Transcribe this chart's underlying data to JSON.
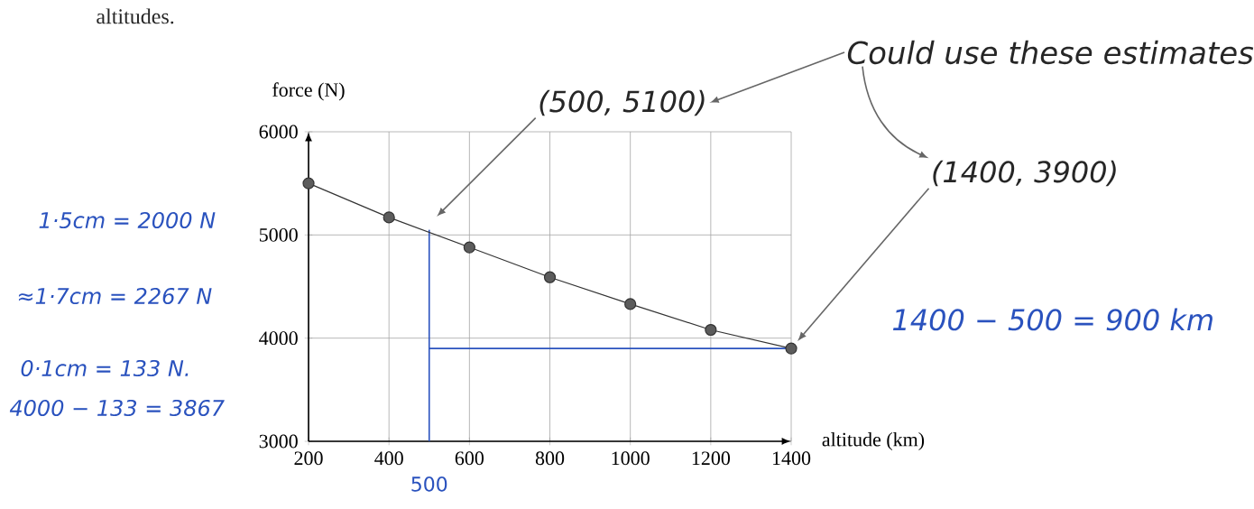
{
  "chart_data": {
    "type": "line",
    "xlabel": "altitude (km)",
    "ylabel": "force (N)",
    "x": [
      200,
      400,
      600,
      800,
      1000,
      1200,
      1400
    ],
    "values": [
      5500,
      5170,
      4880,
      4590,
      4330,
      4080,
      3900
    ],
    "color": "#333333",
    "marker": "circle",
    "grid": true,
    "xlim": [
      200,
      1400
    ],
    "xticks": [
      200,
      400,
      600,
      800,
      1000,
      1200,
      1400
    ],
    "ylim": [
      3000,
      6000
    ],
    "yticks": [
      3000,
      4000,
      5000,
      6000
    ],
    "ref_lines": [
      {
        "axis": "x",
        "value": 500,
        "label": "500",
        "color": "#2a52be"
      },
      {
        "axis": "y",
        "value": 3900,
        "color": "#2a52be"
      }
    ],
    "annotations": [
      "altitudes.",
      "Could use these estimates",
      "(500, 5100)",
      "(1400, 3900)",
      "1·5cm = 2000 N",
      "≈1·7cm = 2267 N",
      "0·1cm = 133 N.",
      "4000 − 133 = 3867",
      "1400 − 500 = 900 km"
    ]
  }
}
